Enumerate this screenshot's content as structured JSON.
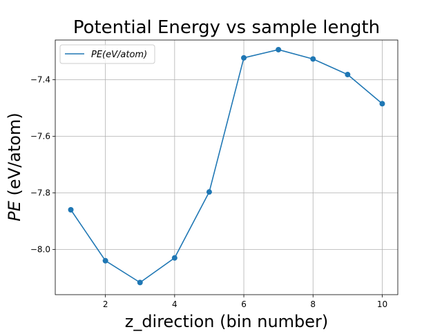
{
  "chart_data": {
    "type": "line",
    "title": "Potential Energy vs sample length",
    "xlabel": "z_direction (bin number)",
    "ylabel_italic": "PE",
    "ylabel_rest": " (eV/atom)",
    "x": [
      1,
      2,
      3,
      4,
      5,
      6,
      7,
      8,
      9,
      10
    ],
    "series": [
      {
        "name": "PE(eV/atom)",
        "values": [
          -7.86,
          -8.04,
          -8.117,
          -8.03,
          -7.797,
          -7.323,
          -7.294,
          -7.327,
          -7.382,
          -7.485
        ],
        "color": "#1f77b4",
        "markers": true
      }
    ],
    "xlim": [
      0.55,
      10.45
    ],
    "ylim": [
      -8.16,
      -7.26
    ],
    "xticks": [
      2,
      4,
      6,
      8,
      10
    ],
    "xtick_labels": [
      "2",
      "4",
      "6",
      "8",
      "10"
    ],
    "yticks": [
      -8.0,
      -7.8,
      -7.6,
      -7.4
    ],
    "ytick_labels": [
      "−8.0",
      "−7.8",
      "−7.6",
      "−7.4"
    ],
    "grid": true,
    "legend_position": "top-left"
  }
}
